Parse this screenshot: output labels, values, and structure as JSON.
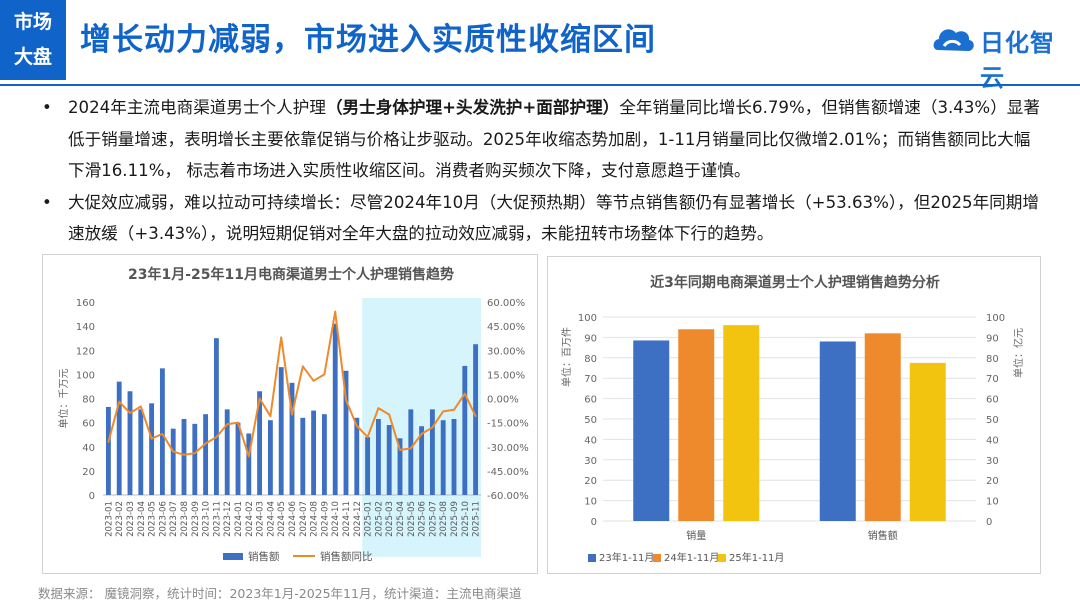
{
  "header": {
    "tag_line1": "市场",
    "tag_line2": "大盘",
    "title": "增长动力减弱，市场进入实质性收缩区间",
    "logo_text": "日化智云"
  },
  "bullets": [
    {
      "dot": "•",
      "pre": "2024年主流电商渠道男士个人护理",
      "bold": "（男士身体护理+头发洗护+面部护理）",
      "post": "全年销量同比增长6.79%，但销售额增速（3.43%）显著低于销量增速，表明增长主要依靠促销与价格让步驱动。2025年收缩态势加剧，1-11月销量同比仅微增2.01%；而销售额同比大幅下滑16.11%， 标志着市场进入实质性收缩区间。消费者购买频次下降，支付意愿趋于谨慎。"
    },
    {
      "dot": "•",
      "text": "大促效应减弱，难以拉动可持续增长：尽管2024年10月（大促预热期）等节点销售额仍有显著增长（+53.63%），但2025年同期增速放缓（+3.43%），说明短期促销对全年大盘的拉动效应减弱，未能扭转市场整体下行的趋势。"
    }
  ],
  "chart_data": [
    {
      "type": "bar",
      "title": "23年1月-25年11月电商渠道男士个人护理销售趋势",
      "ylabel": "单位：千万元",
      "ylim": [
        0,
        160
      ],
      "y_ticks": [
        "0",
        "20",
        "40",
        "60",
        "80",
        "100",
        "120",
        "140",
        "160"
      ],
      "y2lim": [
        -0.6,
        0.6
      ],
      "y2_ticks": [
        "-60.00%",
        "-45.00%",
        "-30.00%",
        "-15.00%",
        "0.00%",
        "15.00%",
        "30.00%",
        "45.00%",
        "60.00%"
      ],
      "categories": [
        "2023-01",
        "2023-02",
        "2023-03",
        "2023-04",
        "2023-05",
        "2023-06",
        "2023-07",
        "2023-08",
        "2023-09",
        "2023-10",
        "2023-11",
        "2023-12",
        "2024-01",
        "2024-02",
        "2024-03",
        "2024-04",
        "2024-05",
        "2024-06",
        "2024-07",
        "2024-08",
        "2024-09",
        "2024-10",
        "2024-11",
        "2024-12",
        "2025-01",
        "2025-02",
        "2025-03",
        "2025-04",
        "2025-05",
        "2025-06",
        "2025-07",
        "2025-08",
        "2025-09",
        "2025-10",
        "2025-11"
      ],
      "series": [
        {
          "name": "销售额",
          "axis": "left",
          "type": "bar",
          "color": "#3d6fc2",
          "values": [
            73,
            94,
            86,
            71,
            76,
            105,
            55,
            63,
            59,
            67,
            130,
            71,
            60,
            51,
            86,
            62,
            106,
            93,
            64,
            70,
            67,
            142,
            103,
            64,
            48,
            63,
            58,
            47,
            71,
            57,
            71,
            62,
            63,
            107,
            125
          ]
        },
        {
          "name": "销售额同比",
          "axis": "right",
          "type": "line",
          "color": "#ef8a2c",
          "values": [
            -0.27,
            -0.02,
            -0.09,
            -0.05,
            -0.25,
            -0.22,
            -0.33,
            -0.35,
            -0.34,
            -0.28,
            -0.24,
            -0.16,
            -0.15,
            -0.36,
            0.0,
            -0.11,
            0.38,
            -0.1,
            0.2,
            0.11,
            0.15,
            0.54,
            -0.01,
            -0.17,
            -0.24,
            -0.06,
            -0.1,
            -0.32,
            -0.31,
            -0.22,
            -0.18,
            -0.08,
            -0.07,
            0.03,
            -0.11
          ]
        }
      ],
      "highlight_range": [
        "2025-01",
        "2025-11"
      ],
      "legend_position": "bottom"
    },
    {
      "type": "bar",
      "title": "近3年同期电商渠道男士个人护理销售趋势分析",
      "ylabel": "单位：百万件",
      "y2label": "单位：亿元",
      "ylim": [
        0,
        100
      ],
      "y_ticks": [
        "0",
        "10",
        "20",
        "30",
        "40",
        "50",
        "60",
        "70",
        "80",
        "90",
        "100"
      ],
      "y2lim": [
        0,
        100
      ],
      "y2_ticks": [
        "0",
        "10",
        "20",
        "30",
        "40",
        "50",
        "60",
        "70",
        "80",
        "90",
        "100"
      ],
      "grid": true,
      "categories": [
        "销量",
        "销售额"
      ],
      "series": [
        {
          "name": "23年1-11月",
          "color": "#3d6fc2",
          "values": [
            88.5,
            88
          ]
        },
        {
          "name": "24年1-11月",
          "color": "#ef8a2c",
          "values": [
            94,
            92
          ]
        },
        {
          "name": "25年1-11月",
          "color": "#f2c30f",
          "values": [
            96,
            77.5
          ]
        }
      ],
      "legend_position": "bottom-left"
    }
  ],
  "footer": "数据来源：  魔镜洞察，统计时间：2023年1月-2025年11月，统计渠道：主流电商渠道"
}
